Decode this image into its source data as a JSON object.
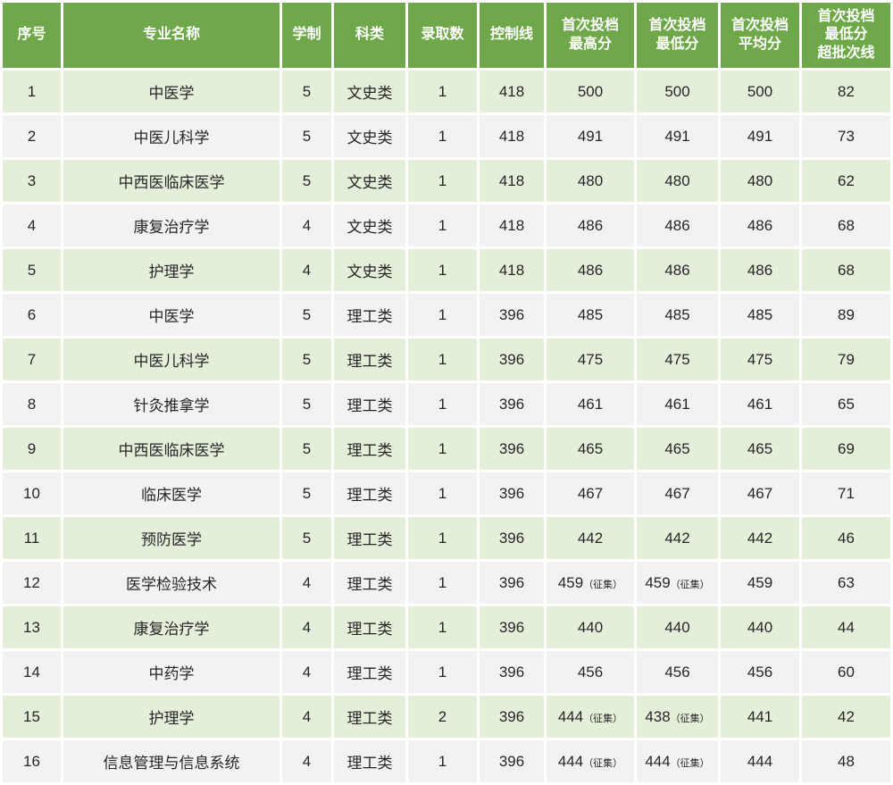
{
  "table": {
    "headers": [
      "序号",
      "专业名称",
      "学制",
      "科类",
      "录取数",
      "控制线",
      "首次投档\n最高分",
      "首次投档\n最低分",
      "首次投档\n平均分",
      "首次投档\n最低分\n超批次线"
    ],
    "rows": [
      {
        "no": "1",
        "major": "中医学",
        "years": "5",
        "category": "文史类",
        "admitted": "1",
        "control": "418",
        "max": "500",
        "max_note": "",
        "min": "500",
        "min_note": "",
        "avg": "500",
        "over": "82"
      },
      {
        "no": "2",
        "major": "中医儿科学",
        "years": "5",
        "category": "文史类",
        "admitted": "1",
        "control": "418",
        "max": "491",
        "max_note": "",
        "min": "491",
        "min_note": "",
        "avg": "491",
        "over": "73"
      },
      {
        "no": "3",
        "major": "中西医临床医学",
        "years": "5",
        "category": "文史类",
        "admitted": "1",
        "control": "418",
        "max": "480",
        "max_note": "",
        "min": "480",
        "min_note": "",
        "avg": "480",
        "over": "62"
      },
      {
        "no": "4",
        "major": "康复治疗学",
        "years": "4",
        "category": "文史类",
        "admitted": "1",
        "control": "418",
        "max": "486",
        "max_note": "",
        "min": "486",
        "min_note": "",
        "avg": "486",
        "over": "68"
      },
      {
        "no": "5",
        "major": "护理学",
        "years": "4",
        "category": "文史类",
        "admitted": "1",
        "control": "418",
        "max": "486",
        "max_note": "",
        "min": "486",
        "min_note": "",
        "avg": "486",
        "over": "68"
      },
      {
        "no": "6",
        "major": "中医学",
        "years": "5",
        "category": "理工类",
        "admitted": "1",
        "control": "396",
        "max": "485",
        "max_note": "",
        "min": "485",
        "min_note": "",
        "avg": "485",
        "over": "89"
      },
      {
        "no": "7",
        "major": "中医儿科学",
        "years": "5",
        "category": "理工类",
        "admitted": "1",
        "control": "396",
        "max": "475",
        "max_note": "",
        "min": "475",
        "min_note": "",
        "avg": "475",
        "over": "79"
      },
      {
        "no": "8",
        "major": "针灸推拿学",
        "years": "5",
        "category": "理工类",
        "admitted": "1",
        "control": "396",
        "max": "461",
        "max_note": "",
        "min": "461",
        "min_note": "",
        "avg": "461",
        "over": "65"
      },
      {
        "no": "9",
        "major": "中西医临床医学",
        "years": "5",
        "category": "理工类",
        "admitted": "1",
        "control": "396",
        "max": "465",
        "max_note": "",
        "min": "465",
        "min_note": "",
        "avg": "465",
        "over": "69"
      },
      {
        "no": "10",
        "major": "临床医学",
        "years": "5",
        "category": "理工类",
        "admitted": "1",
        "control": "396",
        "max": "467",
        "max_note": "",
        "min": "467",
        "min_note": "",
        "avg": "467",
        "over": "71"
      },
      {
        "no": "11",
        "major": "预防医学",
        "years": "5",
        "category": "理工类",
        "admitted": "1",
        "control": "396",
        "max": "442",
        "max_note": "",
        "min": "442",
        "min_note": "",
        "avg": "442",
        "over": "46"
      },
      {
        "no": "12",
        "major": "医学检验技术",
        "years": "4",
        "category": "理工类",
        "admitted": "1",
        "control": "396",
        "max": "459",
        "max_note": "（征集）",
        "min": "459",
        "min_note": "（征集）",
        "avg": "459",
        "over": "63"
      },
      {
        "no": "13",
        "major": "康复治疗学",
        "years": "4",
        "category": "理工类",
        "admitted": "1",
        "control": "396",
        "max": "440",
        "max_note": "",
        "min": "440",
        "min_note": "",
        "avg": "440",
        "over": "44"
      },
      {
        "no": "14",
        "major": "中药学",
        "years": "4",
        "category": "理工类",
        "admitted": "1",
        "control": "396",
        "max": "456",
        "max_note": "",
        "min": "456",
        "min_note": "",
        "avg": "456",
        "over": "60"
      },
      {
        "no": "15",
        "major": "护理学",
        "years": "4",
        "category": "理工类",
        "admitted": "2",
        "control": "396",
        "max": "444",
        "max_note": "（征集）",
        "min": "438",
        "min_note": "（征集）",
        "avg": "441",
        "over": "42"
      },
      {
        "no": "16",
        "major": "信息管理与信息系统",
        "years": "4",
        "category": "理工类",
        "admitted": "1",
        "control": "396",
        "max": "444",
        "max_note": "（征集）",
        "min": "444",
        "min_note": "（征集）",
        "avg": "444",
        "over": "48"
      }
    ]
  },
  "colors": {
    "header_bg": "#6FA84A",
    "header_text": "#FFFFFF",
    "band_green": "#E4EFDA",
    "band_gray": "#F2F2F2",
    "cell_text": "#262626",
    "separator": "#FFFFFF"
  }
}
